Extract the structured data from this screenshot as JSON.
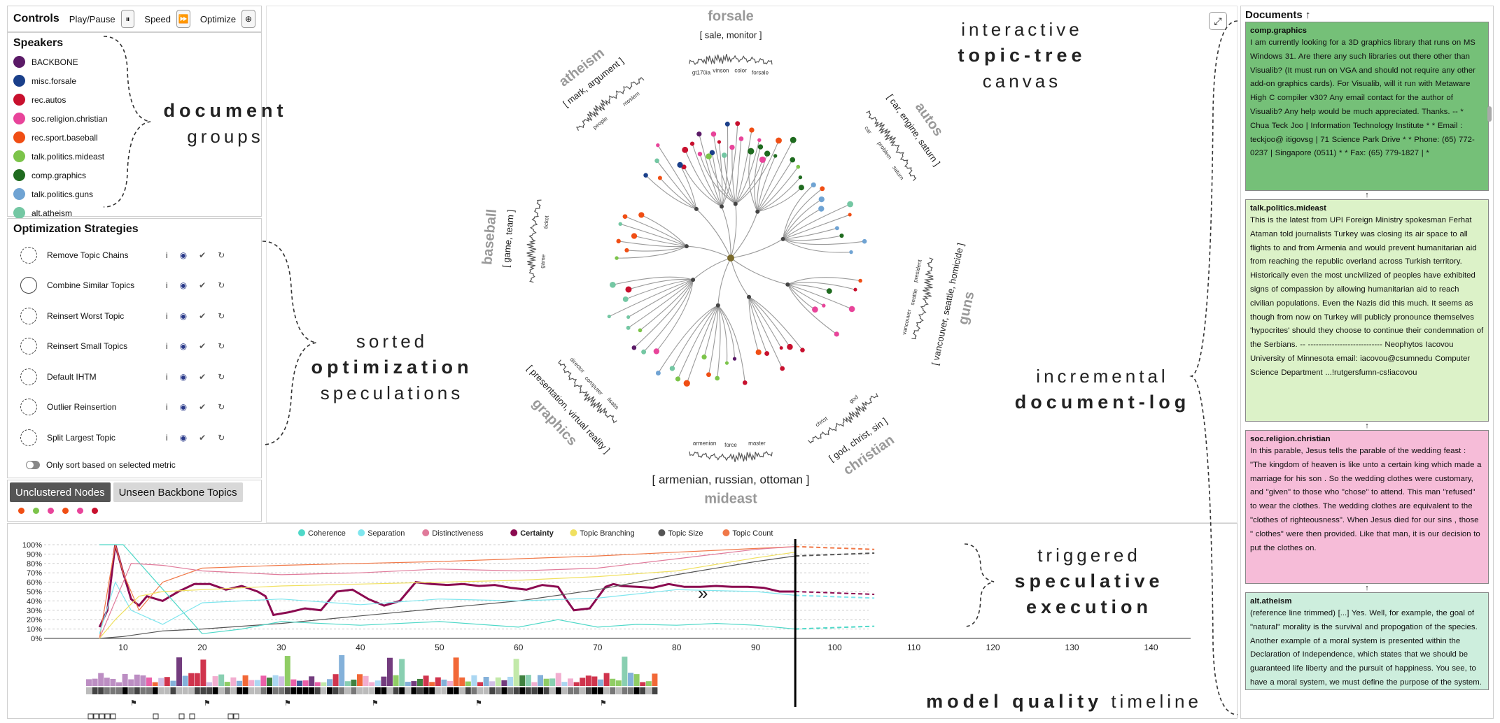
{
  "controls": {
    "title": "Controls",
    "play_label": "Play/Pause",
    "speed_label": "Speed",
    "optimize_label": "Optimize",
    "play_icon": "⏸",
    "speed_icon": "⏩",
    "optimize_icon": "⊕"
  },
  "speakers": {
    "title": "Speakers",
    "items": [
      {
        "label": "BACKBONE",
        "color": "#5b1a67"
      },
      {
        "label": "misc.forsale",
        "color": "#1a3f8a"
      },
      {
        "label": "rec.autos",
        "color": "#c8102e"
      },
      {
        "label": "soc.religion.christian",
        "color": "#e8449a"
      },
      {
        "label": "rec.sport.baseball",
        "color": "#f04e14"
      },
      {
        "label": "talk.politics.mideast",
        "color": "#7cc44a"
      },
      {
        "label": "comp.graphics",
        "color": "#1f6b1f"
      },
      {
        "label": "talk.politics.guns",
        "color": "#6fa3d3"
      },
      {
        "label": "alt.atheism",
        "color": "#74c7a3"
      }
    ]
  },
  "optimization": {
    "title": "Optimization Strategies",
    "strategies": [
      {
        "label": "Remove Topic Chains"
      },
      {
        "label": "Combine Similar Topics"
      },
      {
        "label": "Reinsert Worst Topic"
      },
      {
        "label": "Reinsert Small Topics"
      },
      {
        "label": "Default IHTM"
      },
      {
        "label": "Outlier Reinsertion"
      },
      {
        "label": "Split Largest Topic"
      }
    ],
    "icons": {
      "info": "i",
      "eye": "◉",
      "check": "✔",
      "undo": "↻"
    },
    "toggle_label": "Only sort based on selected metric"
  },
  "tabs": {
    "items": [
      {
        "label": "Unclustered Nodes"
      },
      {
        "label": "Unseen Backbone Topics"
      }
    ],
    "dot_colors": [
      "#f04e14",
      "#7cc44a",
      "#e8449a",
      "#f04e14",
      "#e8449a",
      "#c8102e"
    ]
  },
  "tree": {
    "groups": [
      {
        "name": "forsale",
        "keywords": "[ sale, monitor ]",
        "leaves": [
          "gt170ia",
          "vinson",
          "color",
          "forsale"
        ]
      },
      {
        "name": "autos",
        "keywords": "[ car, engine, saturn ]",
        "leaves": [
          "car",
          "problem",
          "saturn"
        ]
      },
      {
        "name": "guns",
        "keywords": "[ vancouver, seattle, homicide ]",
        "leaves": [
          "president",
          "seattle",
          "vancouver"
        ]
      },
      {
        "name": "christian",
        "keywords": "[ god, christ, sin ]",
        "leaves": [
          "god",
          "christ"
        ]
      },
      {
        "name": "mideast",
        "keywords": "[ armenian, russian, ottoman ]",
        "leaves": [
          "master",
          "force",
          "armenian"
        ]
      },
      {
        "name": "graphics",
        "keywords": "[ presentation, virtual reality ]",
        "leaves": [
          "ilsatis",
          "computer",
          "director"
        ]
      },
      {
        "name": "baseball",
        "keywords": "[ game, team ]",
        "leaves": [
          "game",
          "ticket"
        ]
      },
      {
        "name": "atheism",
        "keywords": "[ mark, argument ]",
        "leaves": [
          "people",
          "moslem"
        ]
      }
    ]
  },
  "timeline": {
    "legend": [
      {
        "label": "Coherence",
        "color": "#4fd8c8"
      },
      {
        "label": "Separation",
        "color": "#7fe6ee"
      },
      {
        "label": "Distinctiveness",
        "color": "#e07a9a"
      },
      {
        "label": "Certainty",
        "color": "#8b0a50"
      },
      {
        "label": "Topic Branching",
        "color": "#f0e060"
      },
      {
        "label": "Topic Size",
        "color": "#555555"
      },
      {
        "label": "Topic Count",
        "color": "#f07848"
      }
    ],
    "y_ticks": [
      "100%",
      "90%",
      "80%",
      "70%",
      "60%",
      "50%",
      "40%",
      "30%",
      "20%",
      "10%",
      "0%"
    ],
    "x_ticks": [
      "10",
      "20",
      "30",
      "40",
      "50",
      "60",
      "70",
      "80",
      "90",
      "100",
      "110",
      "120",
      "130",
      "140"
    ],
    "forward_icon": "»"
  },
  "chart_data": {
    "type": "line",
    "xlabel": "",
    "ylabel": "",
    "ylim": [
      0,
      100
    ],
    "xlim": [
      0,
      145
    ],
    "y_unit": "%",
    "current_position": 95,
    "series": [
      {
        "name": "Certainty",
        "x": [
          7,
          8,
          9,
          10,
          11,
          12,
          13,
          15,
          17,
          19,
          21,
          23,
          25,
          27,
          28,
          29,
          31,
          33,
          35,
          37,
          39,
          41,
          43,
          45,
          47,
          49,
          51,
          53,
          55,
          57,
          59,
          61,
          63,
          65,
          66,
          67,
          69,
          71,
          72,
          73,
          75,
          77,
          79,
          81,
          83,
          85,
          87,
          89,
          91,
          93,
          95
        ],
        "y": [
          12,
          30,
          100,
          70,
          42,
          35,
          45,
          40,
          50,
          58,
          58,
          52,
          56,
          50,
          45,
          25,
          28,
          32,
          30,
          50,
          52,
          42,
          35,
          40,
          60,
          58,
          57,
          58,
          56,
          57,
          54,
          52,
          57,
          55,
          42,
          30,
          32,
          55,
          58,
          56,
          55,
          54,
          58,
          55,
          55,
          56,
          55,
          55,
          54,
          50,
          50
        ]
      },
      {
        "name": "Topic Size",
        "x": [
          7,
          10,
          15,
          20,
          30,
          40,
          50,
          60,
          70,
          80,
          90,
          95
        ],
        "y": [
          0,
          2,
          8,
          10,
          16,
          24,
          32,
          40,
          52,
          68,
          82,
          88
        ]
      },
      {
        "name": "Topic Count",
        "x": [
          7,
          9,
          10,
          12,
          15,
          20,
          30,
          40,
          50,
          60,
          70,
          80,
          90,
          95
        ],
        "y": [
          0,
          100,
          70,
          30,
          60,
          75,
          78,
          80,
          82,
          85,
          88,
          92,
          96,
          98
        ]
      },
      {
        "name": "Coherence",
        "x": [
          7,
          10,
          20,
          25,
          30,
          40,
          50,
          60,
          65,
          70,
          75,
          80,
          85,
          90,
          95
        ],
        "y": [
          100,
          100,
          5,
          10,
          18,
          14,
          18,
          12,
          20,
          12,
          15,
          14,
          16,
          14,
          10
        ]
      },
      {
        "name": "Separation",
        "x": [
          7,
          9,
          11,
          15,
          20,
          30,
          40,
          50,
          60,
          70,
          80,
          90,
          95
        ],
        "y": [
          5,
          60,
          30,
          15,
          38,
          42,
          36,
          42,
          40,
          43,
          52,
          50,
          46
        ]
      },
      {
        "name": "Distinctiveness",
        "x": [
          7,
          9,
          11,
          15,
          20,
          30,
          40,
          50,
          60,
          70,
          80,
          90,
          95
        ],
        "y": [
          0,
          40,
          80,
          78,
          72,
          68,
          70,
          74,
          72,
          75,
          85,
          95,
          98
        ]
      },
      {
        "name": "Topic Branching",
        "x": [
          7,
          9,
          12,
          15,
          20,
          30,
          40,
          50,
          60,
          70,
          80,
          90,
          95
        ],
        "y": [
          0,
          20,
          45,
          50,
          52,
          56,
          58,
          60,
          62,
          66,
          72,
          86,
          92
        ]
      }
    ]
  },
  "documents": {
    "title": "Documents",
    "sort_icon": "↑",
    "link_icon": "↑",
    "items": [
      {
        "title": "comp.graphics",
        "color": "#75c078",
        "text": "I am currently looking for a 3D graphics library that runs on MS Windows 31. Are there any such libraries out there other than Visualib? (It must run on VGA and should not require any other add-on graphics cards). For Visualib, will it run with Metaware High C compiler v30? Any email contact for the author of Visualib? Any help would be much appreciated. Thanks. -- * Chua Teck Joo | Information Technology Institute * * Email : teckjoo@ itigovsg | 71 Science Park Drive * * Phone: (65) 772-0237 | Singapore (0511) * * Fax: (65) 779-1827 | *"
      },
      {
        "title": "talk.politics.mideast",
        "color": "#dcf2c8",
        "text": "This is the latest from UPI Foreign Ministry spokesman Ferhat Ataman told journalists Turkey was closing its air space to all flights to and from Armenia and would prevent humanitarian aid from reaching the republic overland across Turkish territory. Historically even the most uncivilized of peoples have exhibited signs of compassion by allowing humanitarian aid to reach civilian populations. Even the Nazis did this much. It seems as though from now on Turkey will publicly pronounce themselves 'hypocrites' should they choose to continue their condemnation of the Serbians. -- ---------------------------- Neophytos Iacovou University of Minnesota email: iacovou@csumnedu Computer Science Department ...!rutgersfumn-cs!iacovou"
      },
      {
        "title": "soc.religion.christian",
        "color": "#f6bcd8",
        "text": "In this parable, Jesus tells the parable of the wedding feast : \"The kingdom of heaven is like unto a certain king which made a marriage for his son . So the wedding clothes were customary, and \"given\" to those who \"chose\" to attend. This man \"refused\" to wear the clothes. The wedding clothes are equivalent to the \"clothes of righteousness\". When Jesus died for our sins , those \" clothes\" were then provided. Like that man, it is our decision to put the clothes on."
      },
      {
        "title": "alt.atheism",
        "color": "#cdeedd",
        "text": "(reference line trimmed) [...] Yes. Well, for example, the goal of \"natural\" morality is the survival and propogation of the species. Another example of a moral system is presented within the Declaration of Independence, which states that we should be guaranteed life liberty and the pursuit of happiness. You see, to have a moral system, we must define the purpose of the system. That is, we shall be moral unto what end? Well, murder violates the golden rule."
      }
    ]
  },
  "annotations": {
    "document_groups": {
      "bold": "document",
      "light": "groups"
    },
    "sorted_speculations": {
      "light1": "sorted",
      "bold": "optimization",
      "light2": "speculations"
    },
    "topic_tree": {
      "light1": "interactive",
      "bold": "topic-tree",
      "light2": "canvas"
    },
    "document_log": {
      "light": "incremental",
      "bold": "document-log"
    },
    "speculative": {
      "light": "triggered",
      "bold1": "speculative",
      "bold2": "execution"
    },
    "timeline": {
      "bold": "model quality",
      "light": "timeline"
    }
  }
}
